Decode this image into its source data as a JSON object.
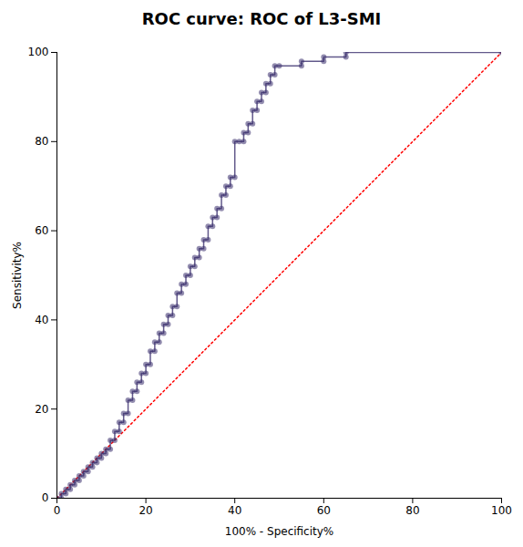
{
  "chart_data": {
    "type": "line",
    "title": "ROC curve: ROC of L3-SMI",
    "xlabel": "100% - Specificity%",
    "ylabel": "Sensitivity%",
    "xlim": [
      0,
      100
    ],
    "ylim": [
      0,
      100
    ],
    "xticks": [
      0,
      20,
      40,
      60,
      80,
      100
    ],
    "yticks": [
      0,
      20,
      40,
      60,
      80,
      100
    ],
    "grid": false,
    "series": [
      {
        "color": "#FF0000",
        "line_style": "dotted",
        "x": [
          0,
          100
        ],
        "values": [
          0,
          100
        ]
      },
      {
        "color": "#3B2F6E",
        "line_style": "solid",
        "marker": "circle",
        "x": [
          0,
          1,
          1,
          2,
          2,
          3,
          3,
          4,
          4,
          5,
          5,
          6,
          6,
          7,
          7,
          8,
          8,
          9,
          9,
          10,
          10,
          11,
          11,
          12,
          12,
          13,
          13,
          14,
          14,
          15,
          15,
          16,
          16,
          17,
          17,
          18,
          18,
          19,
          19,
          20,
          20,
          21,
          21,
          22,
          22,
          23,
          23,
          24,
          24,
          25,
          25,
          26,
          26,
          27,
          27,
          28,
          28,
          29,
          29,
          30,
          30,
          31,
          31,
          32,
          32,
          33,
          33,
          34,
          34,
          35,
          35,
          36,
          36,
          37,
          37,
          38,
          38,
          39,
          39,
          40,
          40,
          41,
          42,
          42,
          43,
          43,
          44,
          44,
          45,
          45,
          46,
          46,
          47,
          47,
          48,
          48,
          49,
          49,
          50,
          55,
          55,
          60,
          60,
          65,
          65,
          100
        ],
        "values": [
          0,
          0,
          1,
          1,
          2,
          2,
          3,
          3,
          4,
          4,
          5,
          5,
          6,
          6,
          7,
          7,
          8,
          8,
          9,
          9,
          10,
          10,
          11,
          11,
          13,
          13,
          15,
          15,
          17,
          17,
          19,
          19,
          22,
          22,
          24,
          24,
          26,
          26,
          28,
          28,
          30,
          30,
          33,
          33,
          35,
          35,
          37,
          37,
          39,
          39,
          41,
          41,
          43,
          43,
          46,
          46,
          48,
          48,
          50,
          50,
          52,
          52,
          54,
          54,
          56,
          56,
          58,
          58,
          61,
          61,
          63,
          63,
          65,
          65,
          68,
          68,
          70,
          70,
          72,
          72,
          80,
          80,
          80,
          82,
          82,
          84,
          84,
          87,
          87,
          89,
          89,
          91,
          91,
          93,
          93,
          95,
          95,
          97,
          97,
          97,
          98,
          98,
          99,
          99,
          100,
          100
        ]
      }
    ]
  }
}
